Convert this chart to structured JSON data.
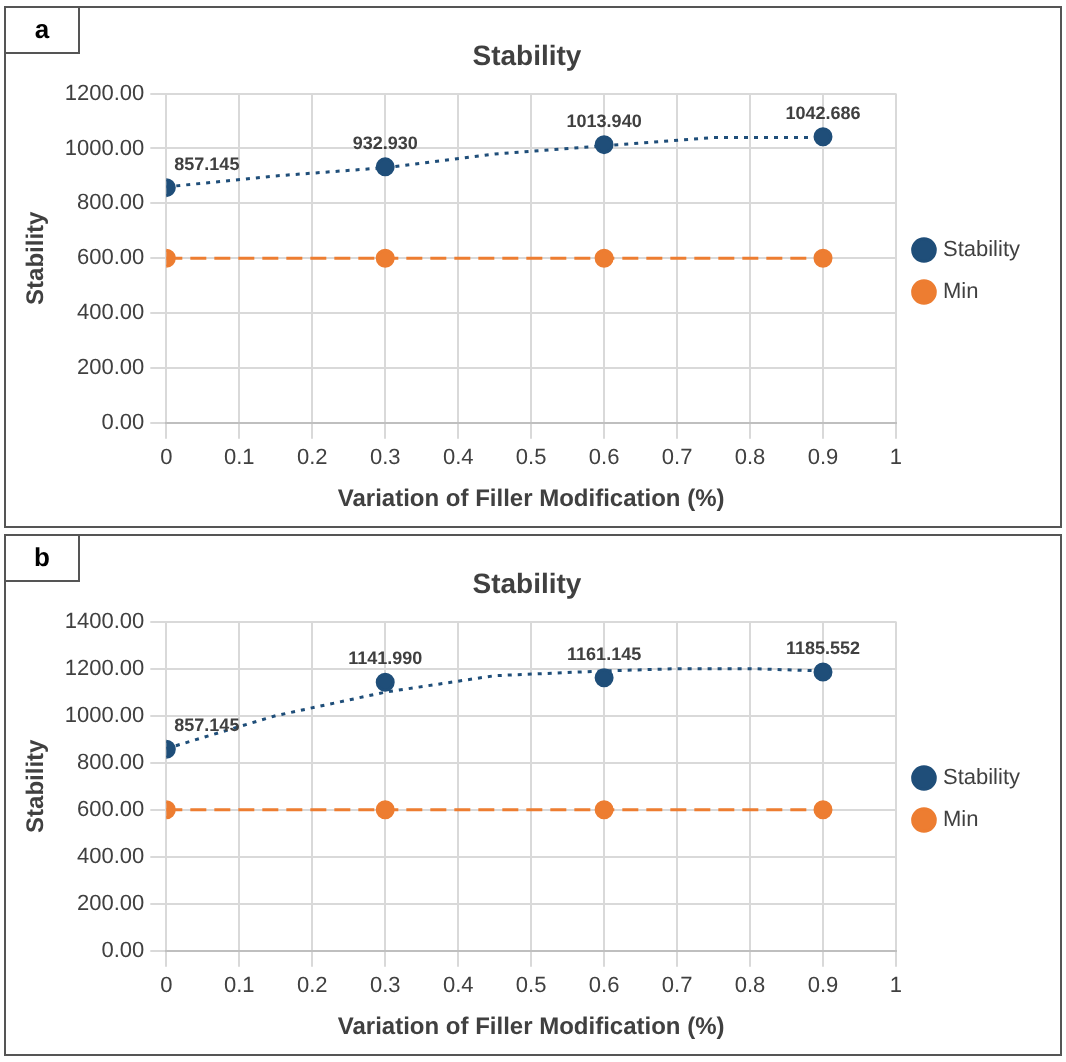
{
  "chart_data": [
    {
      "type": "scatter",
      "title": "Stability",
      "xlabel": "Variation of Filler Modification (%)",
      "ylabel": "Stability",
      "annotations": [
        "a"
      ],
      "x": [
        0,
        0.3,
        0.6,
        0.9
      ],
      "xlim": [
        0,
        1
      ],
      "xticks": [
        0,
        0.1,
        0.2,
        0.3,
        0.4,
        0.5,
        0.6,
        0.7,
        0.8,
        0.9,
        1
      ],
      "ylim": [
        0,
        1200
      ],
      "yticks": [
        {
          "value": 0,
          "label": "0.00"
        },
        {
          "value": 200,
          "label": "200.00"
        },
        {
          "value": 400,
          "label": "400.00"
        },
        {
          "value": 600,
          "label": "600.00"
        },
        {
          "value": 800,
          "label": "800.00"
        },
        {
          "value": 1000,
          "label": "1000.00"
        },
        {
          "value": 1200,
          "label": "1200.00"
        }
      ],
      "grid": true,
      "legend": "right",
      "marker": "circle",
      "series": [
        {
          "name": "Stability",
          "color": "#1f4e79",
          "values": [
            857.145,
            932.93,
            1013.94,
            1042.686
          ],
          "value_labels": [
            "857.145",
            "932.930",
            "1013.940",
            "1042.686"
          ]
        },
        {
          "name": "Min",
          "type": "line",
          "color": "#ed7d31",
          "line_style": "dashed",
          "values": [
            600,
            600,
            600,
            600
          ]
        },
        {
          "type": "line",
          "color": "#1f4e79",
          "line_style": "dotted",
          "marker": "none",
          "x": [
            0,
            0.15,
            0.3,
            0.45,
            0.6,
            0.75,
            0.9
          ],
          "values": [
            860,
            900,
            930,
            980,
            1010,
            1040,
            1040
          ]
        }
      ]
    },
    {
      "type": "scatter",
      "title": "Stability",
      "xlabel": "Variation of Filler Modification (%)",
      "ylabel": "Stability",
      "annotations": [
        "b"
      ],
      "x": [
        0,
        0.3,
        0.6,
        0.9
      ],
      "xlim": [
        0,
        1
      ],
      "xticks": [
        0,
        0.1,
        0.2,
        0.3,
        0.4,
        0.5,
        0.6,
        0.7,
        0.8,
        0.9,
        1
      ],
      "ylim": [
        0,
        1400
      ],
      "yticks": [
        {
          "value": 0,
          "label": "0.00"
        },
        {
          "value": 200,
          "label": "200.00"
        },
        {
          "value": 400,
          "label": "400.00"
        },
        {
          "value": 600,
          "label": "600.00"
        },
        {
          "value": 800,
          "label": "800.00"
        },
        {
          "value": 1000,
          "label": "1000.00"
        },
        {
          "value": 1200,
          "label": "1200.00"
        },
        {
          "value": 1400,
          "label": "1400.00"
        }
      ],
      "grid": true,
      "legend": "right",
      "marker": "circle",
      "series": [
        {
          "name": "Stability",
          "color": "#1f4e79",
          "values": [
            857.145,
            1141.99,
            1161.145,
            1185.552
          ],
          "value_labels": [
            "857.145",
            "1141.990",
            "1161.145",
            "1185.552"
          ]
        },
        {
          "name": "Min",
          "type": "line",
          "color": "#ed7d31",
          "line_style": "dashed",
          "values": [
            600,
            600,
            600,
            600
          ]
        },
        {
          "type": "line",
          "color": "#1f4e79",
          "line_style": "dotted",
          "marker": "none",
          "x": [
            0,
            0.15,
            0.3,
            0.45,
            0.6,
            0.7,
            0.8,
            0.9
          ],
          "values": [
            860,
            1000,
            1100,
            1170,
            1190,
            1200,
            1200,
            1190
          ]
        }
      ]
    }
  ]
}
